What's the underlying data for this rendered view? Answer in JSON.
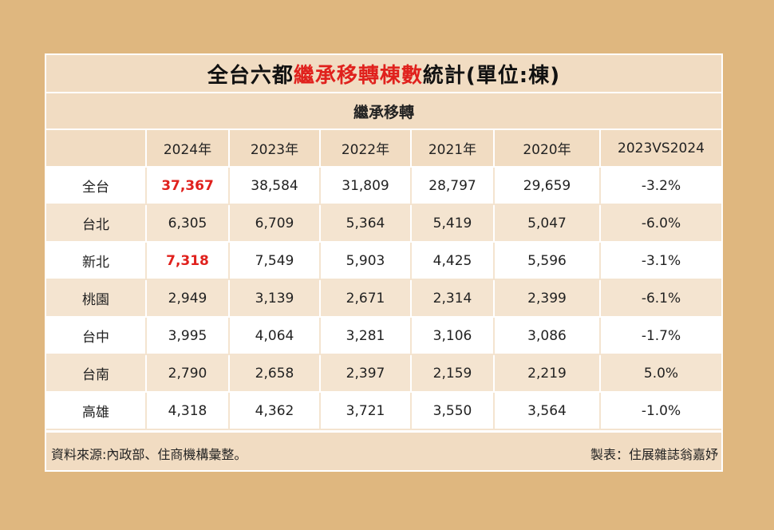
{
  "title": {
    "prefix": "全台六都",
    "highlight": "繼承移轉棟數",
    "suffix": "統計(單位:棟)"
  },
  "subtitle": "繼承移轉",
  "columns": [
    "",
    "2024年",
    "2023年",
    "2022年",
    "2021年",
    "2020年",
    "2023VS2024"
  ],
  "rows": [
    {
      "city": "全台",
      "values": [
        "37,367",
        "38,584",
        "31,809",
        "28,797",
        "29,659",
        "-3.2%"
      ]
    },
    {
      "city": "台北",
      "values": [
        "6,305",
        "6,709",
        "5,364",
        "5,419",
        "5,047",
        "-6.0%"
      ]
    },
    {
      "city": "新北",
      "values": [
        "7,318",
        "7,549",
        "5,903",
        "4,425",
        "5,596",
        "-3.1%"
      ]
    },
    {
      "city": "桃園",
      "values": [
        "2,949",
        "3,139",
        "2,671",
        "2,314",
        "2,399",
        "-6.1%"
      ]
    },
    {
      "city": "台中",
      "values": [
        "3,995",
        "4,064",
        "3,281",
        "3,106",
        "3,086",
        "-1.7%"
      ]
    },
    {
      "city": "台南",
      "values": [
        "2,790",
        "2,658",
        "2,397",
        "2,159",
        "2,219",
        "5.0%"
      ]
    },
    {
      "city": "高雄",
      "values": [
        "4,318",
        "4,362",
        "3,721",
        "3,550",
        "3,564",
        "-1.0%"
      ]
    }
  ],
  "footer": {
    "source": "資料來源:內政部、住商機構彙整。",
    "credit": "製表：住展雜誌翁嘉妤"
  },
  "colors": {
    "background": "#dfb77f",
    "header_fill": "#f1dcc2",
    "stripe_fill": "#f4e4d0",
    "highlight_red": "#e0211d"
  }
}
